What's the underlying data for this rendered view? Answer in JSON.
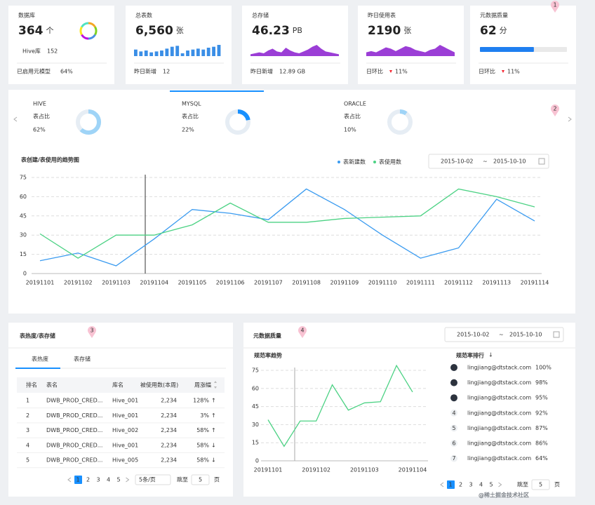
{
  "stat_cards": [
    {
      "title": "数据库",
      "value": "364",
      "unit": "个",
      "rows": [
        {
          "label": "Hive库",
          "value": "152"
        },
        {
          "label": "已启用元模型",
          "value": "64%"
        }
      ]
    },
    {
      "title": "总表数",
      "value": "6,560",
      "unit": "张",
      "rows": [
        {
          "label": "昨日新增",
          "value": "12"
        }
      ],
      "bars": [
        7,
        5,
        6,
        4,
        5,
        6,
        8,
        10,
        11,
        3,
        6,
        7,
        8,
        7,
        9,
        10,
        12
      ],
      "bar_color": "#3a8ee6"
    },
    {
      "title": "总存储",
      "value": "46.23",
      "unit": "PB",
      "rows": [
        {
          "label": "昨日新增",
          "value": "12.89 GB"
        }
      ],
      "area": [
        2,
        3,
        4,
        3,
        6,
        8,
        5,
        4,
        9,
        6,
        4,
        3,
        5,
        7,
        10,
        12,
        8,
        5,
        4,
        3,
        2
      ],
      "area_color": "#9b3ed6"
    },
    {
      "title": "昨日使用表",
      "value": "2190",
      "unit": "张",
      "rows": [
        {
          "label": "日环比",
          "value": "11%",
          "trend_color": "#f5222d"
        }
      ],
      "area": [
        3,
        4,
        3,
        5,
        7,
        6,
        4,
        6,
        8,
        7,
        5,
        4,
        3,
        5,
        6,
        9,
        7,
        5,
        3
      ],
      "area_color": "#9b3ed6"
    },
    {
      "title": "元数据质量",
      "value": 62,
      "unit": "分",
      "rows": [
        {
          "label": "日环比",
          "value": "11%",
          "trend_color": "#f5222d"
        }
      ],
      "progress_color": "#1f7ff0",
      "badge": "1"
    }
  ],
  "db_panel": {
    "badge": "2",
    "tabs": [
      {
        "name": "HIVE",
        "label": "表占比",
        "share": {
          "value": 62,
          "label": "62%"
        },
        "color": "#9fd4f7"
      },
      {
        "name": "MYSQL",
        "label": "表占比",
        "share": {
          "value": 22,
          "label": "22%"
        },
        "color": "#1890ff"
      },
      {
        "name": "ORACLE",
        "label": "表占比",
        "share": {
          "value": 10,
          "label": "10%"
        },
        "color": "#9fd4f7"
      }
    ]
  },
  "chart_data": [
    {
      "type": "line",
      "title": "表创建/表使用的趋势图",
      "categories": [
        "20191101",
        "20191102",
        "20191103",
        "20191104",
        "20191105",
        "20191106",
        "20191107",
        "20191108",
        "20191109",
        "20191110",
        "20191111",
        "20191112",
        "20191113",
        "20191114"
      ],
      "series": [
        {
          "name": "表新建数",
          "color": "#3a9bf0",
          "values": [
            10,
            16,
            6,
            27,
            50,
            47,
            42,
            66,
            50,
            30,
            12,
            20,
            58,
            41
          ]
        },
        {
          "name": "表使用数",
          "color": "#4cd284",
          "values": [
            31,
            12,
            30,
            30,
            38,
            55,
            40,
            40,
            43,
            44,
            45,
            66,
            60,
            52
          ]
        }
      ],
      "ylim": [
        0,
        75
      ],
      "yticks": [
        0,
        15,
        30,
        45,
        60,
        75
      ],
      "grid": true,
      "date_range": {
        "start": "2015-10-02",
        "separator": "~",
        "end": "2015-10-10"
      }
    },
    {
      "type": "line",
      "title": "规范率趋势",
      "categories": [
        "20191101",
        null,
        null,
        "20191102",
        null,
        null,
        "20191103",
        null,
        null,
        "20191104"
      ],
      "series": [
        {
          "color": "#4cd284",
          "values": [
            34,
            12,
            33,
            33,
            63,
            42,
            48,
            49,
            79,
            57
          ]
        }
      ],
      "ylim": [
        0,
        75
      ],
      "yticks": [
        0,
        15,
        30,
        45,
        60,
        75
      ],
      "grid": true
    }
  ],
  "hot_panel": {
    "title": "表热度/表存储",
    "badge": "3",
    "tabs": [
      "表热度",
      "表存储"
    ],
    "columns": [
      "排名",
      "表名",
      "库名",
      "被使用数(本周)",
      "周涨幅"
    ],
    "rows": [
      [
        "1",
        "DWB_PROD_CRED...",
        "Hive_001",
        "2,234",
        "128%"
      ],
      [
        "2",
        "DWB_PROD_CRED...",
        "Hive_001",
        "2,234",
        "3%"
      ],
      [
        "3",
        "DWB_PROD_CRED...",
        "Hive_002",
        "2,234",
        "58%"
      ],
      [
        "4",
        "DWB_PROD_CRED...",
        "Hive_001",
        "2,234",
        "58%"
      ],
      [
        "5",
        "DWB_PROD_CRED...",
        "Hive_005",
        "2,234",
        "58%"
      ]
    ],
    "arrows": [
      "↑",
      "↑",
      "↑",
      "↓",
      "↓"
    ],
    "arrow_colors": [
      "#3fc47a",
      "#3fc47a",
      "#3fc47a",
      "#f5222d",
      "#f5222d"
    ],
    "pagination": {
      "pages": [
        "1",
        "2",
        "3",
        "4",
        "5"
      ],
      "page_size": "5条/页",
      "jump_label": "跳至",
      "jump_value": "5",
      "page_unit": "页"
    }
  },
  "quality_panel": {
    "title": "元数据质量",
    "badge": "4",
    "date_range": {
      "start": "2015-10-02",
      "separator": "~",
      "end": "2015-10-10"
    },
    "ranking_title": "规范率排行",
    "sort_icon": "↓",
    "ranking": [
      {
        "rank": "1",
        "name": "lingjiang@dtstack.com",
        "rate": "100%"
      },
      {
        "rank": "2",
        "name": "lingjiang@dtstack.com",
        "rate": "98%"
      },
      {
        "rank": "3",
        "name": "lingjiang@dtstack.com",
        "rate": "95%"
      },
      {
        "rank": "4",
        "name": "lingjiang@dtstack.com",
        "rate": "92%"
      },
      {
        "rank": "5",
        "name": "lingjiang@dtstack.com",
        "rate": "87%"
      },
      {
        "rank": "6",
        "name": "lingjiang@dtstack.com",
        "rate": "86%"
      },
      {
        "rank": "7",
        "name": "lingjiang@dtstack.com",
        "rate": "64%"
      }
    ],
    "pagination": {
      "pages": [
        "1",
        "2",
        "3",
        "4",
        "5"
      ],
      "jump_label": "跳至",
      "jump_value": "5",
      "page_unit": "页"
    }
  },
  "watermark": "@稀土掘金技术社区"
}
